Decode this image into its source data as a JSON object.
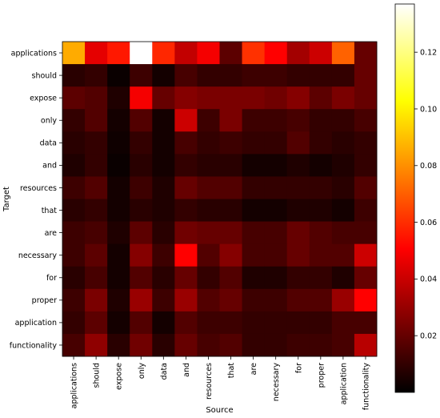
{
  "chart_data": {
    "type": "heatmap",
    "title": "",
    "xlabel": "Source",
    "ylabel": "Target",
    "x_categories": [
      "applications",
      "should",
      "expose",
      "only",
      "data",
      "and",
      "resources",
      "that",
      "are",
      "necessary",
      "for",
      "proper",
      "application",
      "functionality"
    ],
    "y_categories": [
      "applications",
      "should",
      "expose",
      "only",
      "data",
      "and",
      "resources",
      "that",
      "are",
      "necessary",
      "for",
      "proper",
      "application",
      "functionality"
    ],
    "colormap": "hot",
    "colorbar": {
      "range": [
        0,
        0.137
      ],
      "ticks": [
        0.02,
        0.04,
        0.06,
        0.08,
        0.1,
        0.12
      ],
      "tick_labels": [
        "0.02",
        "0.04",
        "0.06",
        "0.08",
        "0.10",
        "0.12"
      ]
    },
    "values": [
      [
        0.085,
        0.045,
        0.055,
        0.137,
        0.058,
        0.038,
        0.048,
        0.018,
        0.06,
        0.05,
        0.032,
        0.04,
        0.07,
        0.02
      ],
      [
        0.008,
        0.01,
        0.002,
        0.012,
        0.004,
        0.014,
        0.01,
        0.01,
        0.012,
        0.012,
        0.01,
        0.01,
        0.01,
        0.02
      ],
      [
        0.018,
        0.016,
        0.006,
        0.048,
        0.02,
        0.026,
        0.024,
        0.024,
        0.024,
        0.022,
        0.026,
        0.018,
        0.024,
        0.02
      ],
      [
        0.01,
        0.016,
        0.004,
        0.016,
        0.004,
        0.04,
        0.012,
        0.024,
        0.012,
        0.012,
        0.014,
        0.01,
        0.01,
        0.014
      ],
      [
        0.008,
        0.01,
        0.003,
        0.01,
        0.004,
        0.014,
        0.01,
        0.012,
        0.01,
        0.01,
        0.016,
        0.01,
        0.008,
        0.01
      ],
      [
        0.006,
        0.01,
        0.002,
        0.008,
        0.004,
        0.01,
        0.008,
        0.008,
        0.004,
        0.004,
        0.006,
        0.004,
        0.006,
        0.01
      ],
      [
        0.012,
        0.016,
        0.004,
        0.012,
        0.006,
        0.02,
        0.016,
        0.016,
        0.01,
        0.01,
        0.01,
        0.01,
        0.008,
        0.016
      ],
      [
        0.008,
        0.01,
        0.004,
        0.008,
        0.006,
        0.01,
        0.008,
        0.008,
        0.004,
        0.004,
        0.006,
        0.006,
        0.004,
        0.012
      ],
      [
        0.012,
        0.014,
        0.006,
        0.018,
        0.008,
        0.022,
        0.02,
        0.02,
        0.014,
        0.014,
        0.02,
        0.016,
        0.014,
        0.014
      ],
      [
        0.012,
        0.018,
        0.004,
        0.026,
        0.012,
        0.05,
        0.016,
        0.026,
        0.014,
        0.014,
        0.02,
        0.016,
        0.016,
        0.04
      ],
      [
        0.008,
        0.014,
        0.004,
        0.016,
        0.008,
        0.02,
        0.01,
        0.016,
        0.006,
        0.006,
        0.01,
        0.01,
        0.006,
        0.02
      ],
      [
        0.012,
        0.024,
        0.006,
        0.03,
        0.012,
        0.03,
        0.016,
        0.02,
        0.012,
        0.012,
        0.016,
        0.016,
        0.03,
        0.05
      ],
      [
        0.01,
        0.018,
        0.004,
        0.016,
        0.004,
        0.016,
        0.012,
        0.012,
        0.01,
        0.01,
        0.01,
        0.01,
        0.014,
        0.014
      ],
      [
        0.014,
        0.028,
        0.008,
        0.022,
        0.008,
        0.02,
        0.014,
        0.016,
        0.01,
        0.01,
        0.012,
        0.012,
        0.014,
        0.036
      ]
    ]
  }
}
